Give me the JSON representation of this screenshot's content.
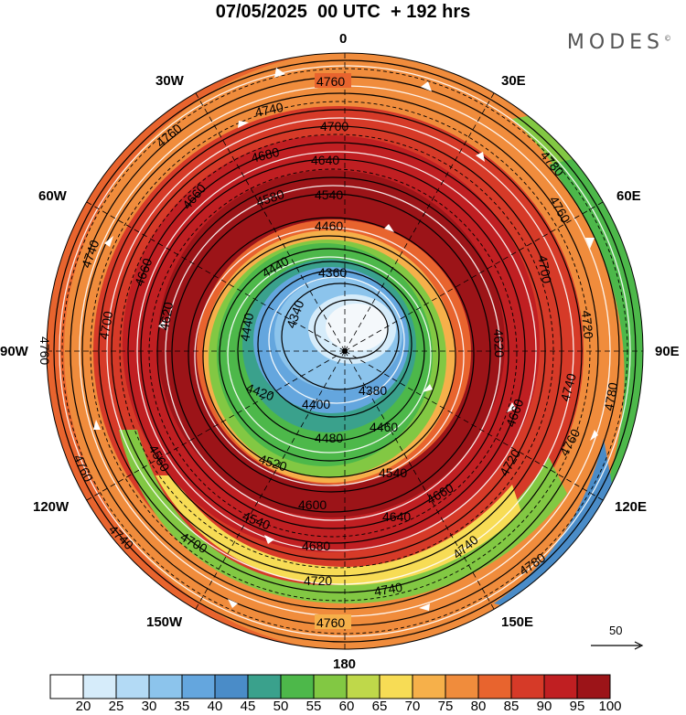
{
  "header": {
    "title": "07/05/2025  00 UTC  + 192 hrs",
    "brand": "MODES",
    "brand_mark": "©"
  },
  "map": {
    "projection": "polar-stereographic-north",
    "longitude_labels": [
      "0",
      "30E",
      "60E",
      "90E",
      "120E",
      "150E",
      "180",
      "150W",
      "120W",
      "90W",
      "60W",
      "30W"
    ],
    "contour_labels": [
      "4760",
      "4740",
      "4700",
      "4680",
      "4640",
      "4600",
      "4580",
      "4540",
      "4500",
      "4460",
      "4440",
      "4400",
      "4380",
      "4360",
      "4340",
      "4420",
      "4480",
      "4520",
      "4560",
      "4620",
      "4660",
      "4720",
      "4780"
    ],
    "wind_scale": {
      "value": "50"
    }
  },
  "colorbar": {
    "ticks": [
      "20",
      "25",
      "30",
      "35",
      "40",
      "45",
      "50",
      "55",
      "60",
      "65",
      "70",
      "75",
      "80",
      "85",
      "90",
      "95",
      "100"
    ],
    "colors": [
      "#ffffff",
      "#d6ecfa",
      "#b3daf5",
      "#8cc4ec",
      "#64a6de",
      "#4a8cc8",
      "#3aa18c",
      "#4db84a",
      "#82c843",
      "#bfd84a",
      "#f7dc55",
      "#f6b04a",
      "#f08c3c",
      "#e8642e",
      "#d63a28",
      "#c01f22",
      "#9c1418"
    ]
  }
}
